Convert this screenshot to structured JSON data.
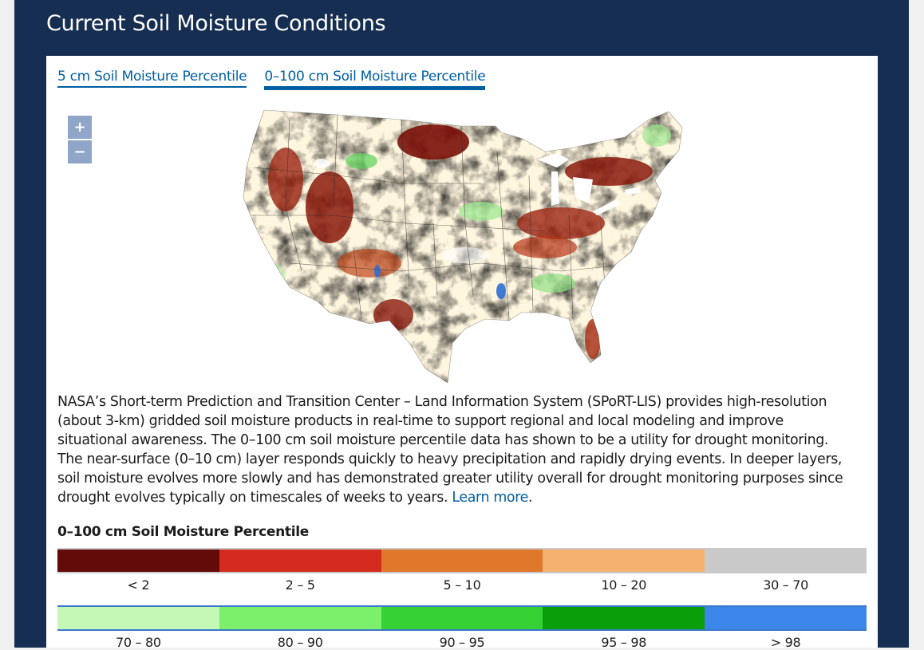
{
  "header": {
    "title": "Current Soil Moisture Conditions"
  },
  "tabs": [
    {
      "label": "5 cm Soil Moisture Percentile"
    },
    {
      "label": "0–100 cm Soil Moisture Percentile"
    }
  ],
  "zoom": {
    "in_label": "+",
    "out_label": "−"
  },
  "description": {
    "text": "NASA’s Short-term Prediction and Transition Center – Land Information System (SPoRT-LIS) provides high-resolution (about 3-km) gridded soil moisture products in real-time to support regional and local modeling and improve situational awareness. The 0–100 cm soil moisture percentile data has shown to be a utility for drought monitoring. The near-surface (0–10 cm) layer responds quickly to heavy precipitation and rapidly drying events. In deeper layers, soil moisture evolves more slowly and has demonstrated greater utility overall for drought monitoring purposes since drought evolves typically on timescales of weeks to years.",
    "link_label": "Learn more",
    "trailing": "."
  },
  "legend": {
    "title": "0–100 cm Soil Moisture Percentile",
    "row1": [
      {
        "label": "< 2",
        "color": "#630b08"
      },
      {
        "label": "2 – 5",
        "color": "#d42a1f"
      },
      {
        "label": "5 – 10",
        "color": "#e0782c"
      },
      {
        "label": "10 – 20",
        "color": "#f5b170"
      },
      {
        "label": "30 – 70",
        "color": "#c9c9c9"
      }
    ],
    "row2": [
      {
        "label": "70 – 80",
        "color": "#c5f7b6"
      },
      {
        "label": "80 – 90",
        "color": "#7cf06a"
      },
      {
        "label": "90 – 95",
        "color": "#35d135"
      },
      {
        "label": "95 – 98",
        "color": "#0b9e0b"
      },
      {
        "label": "> 98",
        "color": "#3b86e8"
      }
    ]
  }
}
